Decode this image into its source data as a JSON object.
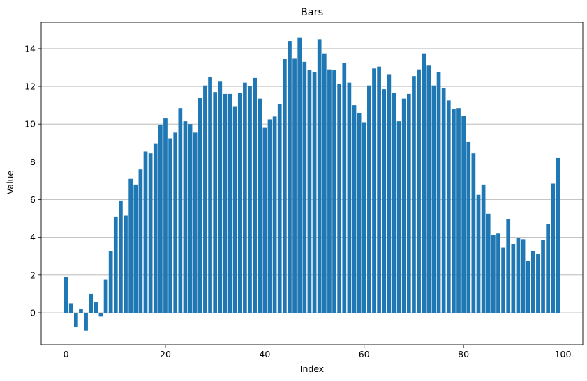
{
  "chart_data": {
    "type": "bar",
    "title": "Bars",
    "xlabel": "Index",
    "ylabel": "Value",
    "x": [
      0,
      1,
      2,
      3,
      4,
      5,
      6,
      7,
      8,
      9,
      10,
      11,
      12,
      13,
      14,
      15,
      16,
      17,
      18,
      19,
      20,
      21,
      22,
      23,
      24,
      25,
      26,
      27,
      28,
      29,
      30,
      31,
      32,
      33,
      34,
      35,
      36,
      37,
      38,
      39,
      40,
      41,
      42,
      43,
      44,
      45,
      46,
      47,
      48,
      49,
      50,
      51,
      52,
      53,
      54,
      55,
      56,
      57,
      58,
      59,
      60,
      61,
      62,
      63,
      64,
      65,
      66,
      67,
      68,
      69,
      70,
      71,
      72,
      73,
      74,
      75,
      76,
      77,
      78,
      79,
      80,
      81,
      82,
      83,
      84,
      85,
      86,
      87,
      88,
      89,
      90,
      91,
      92,
      93,
      94,
      95,
      96,
      97,
      98,
      99
    ],
    "values": [
      1.9,
      0.5,
      -0.75,
      0.2,
      -0.95,
      1.0,
      0.55,
      -0.2,
      1.75,
      3.25,
      5.1,
      5.95,
      5.15,
      7.1,
      6.8,
      7.6,
      8.55,
      8.45,
      8.95,
      9.95,
      10.3,
      9.25,
      9.55,
      10.85,
      10.15,
      10.0,
      9.55,
      11.4,
      12.05,
      12.5,
      11.7,
      12.25,
      11.6,
      11.6,
      10.95,
      11.65,
      12.2,
      12.0,
      12.45,
      11.35,
      9.8,
      10.25,
      10.4,
      11.05,
      13.45,
      14.4,
      13.5,
      14.6,
      13.3,
      12.85,
      12.75,
      14.5,
      13.75,
      12.9,
      12.85,
      12.15,
      13.25,
      12.2,
      11.0,
      10.6,
      10.1,
      12.05,
      12.95,
      13.05,
      11.85,
      12.65,
      11.65,
      10.15,
      11.35,
      11.6,
      12.55,
      12.9,
      13.75,
      13.1,
      12.05,
      12.75,
      11.9,
      11.25,
      10.8,
      10.85,
      10.45,
      9.05,
      8.45,
      6.25,
      6.8,
      5.25,
      4.1,
      4.2,
      3.45,
      4.95,
      3.65,
      3.95,
      3.9,
      2.75,
      3.25,
      3.1,
      3.85,
      4.7,
      6.85,
      8.2
    ],
    "xlim": [
      -5.0,
      104.0
    ],
    "ylim": [
      -1.7,
      15.4
    ],
    "xticks": [
      0,
      20,
      40,
      60,
      80,
      100
    ],
    "yticks": [
      0,
      2,
      4,
      6,
      8,
      10,
      12,
      14
    ],
    "grid": {
      "y": true,
      "x": false
    },
    "bar_color": "#1f77b4",
    "grid_color": "#b0b0b0"
  }
}
